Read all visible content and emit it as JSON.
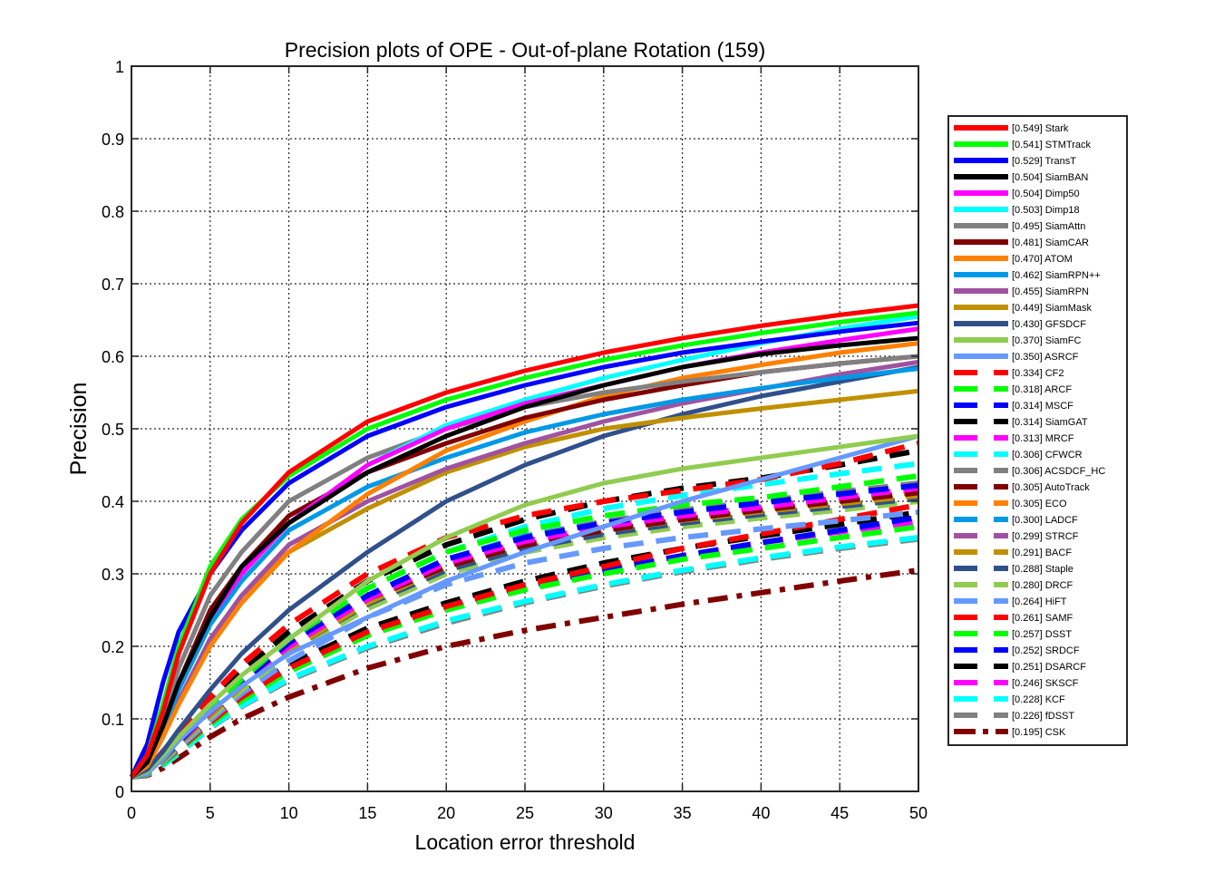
{
  "chart_data": {
    "type": "line",
    "title": "Precision plots of OPE - Out-of-plane Rotation (159)",
    "xlabel": "Location error threshold",
    "ylabel": "Precision",
    "xlim": [
      0,
      50
    ],
    "ylim": [
      0,
      1
    ],
    "xticks": [
      0,
      5,
      10,
      15,
      20,
      25,
      30,
      35,
      40,
      45,
      50
    ],
    "yticks": [
      0,
      0.1,
      0.2,
      0.3,
      0.4,
      0.5,
      0.6,
      0.7,
      0.8,
      0.9,
      1
    ],
    "xtick_labels": [
      "0",
      "5",
      "10",
      "15",
      "20",
      "25",
      "30",
      "35",
      "40",
      "45",
      "50"
    ],
    "ytick_labels": [
      "0",
      "0.1",
      "0.2",
      "0.3",
      "0.4",
      "0.5",
      "0.6",
      "0.7",
      "0.8",
      "0.9",
      "1"
    ],
    "grid": true,
    "legend_position": "right",
    "x": [
      0,
      1,
      2,
      3,
      5,
      7,
      10,
      15,
      20,
      25,
      30,
      35,
      40,
      45,
      50
    ],
    "series": [
      {
        "name": "[0.549] Stark",
        "color": "#FF0000",
        "style": "solid",
        "values": [
          0.02,
          0.05,
          0.11,
          0.19,
          0.3,
          0.37,
          0.44,
          0.51,
          0.55,
          0.58,
          0.605,
          0.625,
          0.642,
          0.657,
          0.67
        ]
      },
      {
        "name": "[0.541] STMTrack",
        "color": "#00FF00",
        "style": "solid",
        "values": [
          0.02,
          0.05,
          0.12,
          0.2,
          0.31,
          0.375,
          0.435,
          0.5,
          0.54,
          0.57,
          0.595,
          0.615,
          0.632,
          0.647,
          0.66
        ]
      },
      {
        "name": "[0.529] TransT",
        "color": "#0000FF",
        "style": "solid",
        "values": [
          0.02,
          0.065,
          0.15,
          0.22,
          0.3,
          0.36,
          0.425,
          0.49,
          0.53,
          0.56,
          0.585,
          0.605,
          0.62,
          0.634,
          0.646
        ]
      },
      {
        "name": "[0.504] SiamBAN",
        "color": "#000000",
        "style": "solid",
        "values": [
          0.02,
          0.04,
          0.09,
          0.15,
          0.24,
          0.31,
          0.37,
          0.44,
          0.49,
          0.53,
          0.56,
          0.585,
          0.603,
          0.615,
          0.625
        ]
      },
      {
        "name": "[0.504] Dimp50",
        "color": "#FF00FF",
        "style": "solid",
        "values": [
          0.02,
          0.04,
          0.09,
          0.15,
          0.24,
          0.3,
          0.37,
          0.45,
          0.5,
          0.535,
          0.56,
          0.585,
          0.605,
          0.622,
          0.638
        ]
      },
      {
        "name": "[0.503] Dimp18",
        "color": "#00FFFF",
        "style": "solid",
        "values": [
          0.02,
          0.04,
          0.09,
          0.15,
          0.24,
          0.3,
          0.37,
          0.45,
          0.505,
          0.54,
          0.57,
          0.595,
          0.618,
          0.638,
          0.655
        ]
      },
      {
        "name": "[0.495] SiamAttn",
        "color": "#808080",
        "style": "solid",
        "values": [
          0.02,
          0.045,
          0.1,
          0.17,
          0.27,
          0.33,
          0.4,
          0.46,
          0.5,
          0.53,
          0.55,
          0.565,
          0.578,
          0.59,
          0.6
        ]
      },
      {
        "name": "[0.481] SiamCAR",
        "color": "#800000",
        "style": "solid",
        "values": [
          0.02,
          0.04,
          0.09,
          0.15,
          0.25,
          0.31,
          0.38,
          0.44,
          0.48,
          0.515,
          0.54,
          0.56,
          0.578,
          0.59,
          0.6
        ]
      },
      {
        "name": "[0.470] ATOM",
        "color": "#FF8000",
        "style": "solid",
        "values": [
          0.02,
          0.035,
          0.075,
          0.12,
          0.2,
          0.26,
          0.33,
          0.41,
          0.47,
          0.51,
          0.545,
          0.57,
          0.588,
          0.605,
          0.618
        ]
      },
      {
        "name": "[0.462] SiamRPN++",
        "color": "#0099E6",
        "style": "solid",
        "values": [
          0.02,
          0.04,
          0.085,
          0.14,
          0.23,
          0.29,
          0.36,
          0.42,
          0.46,
          0.495,
          0.52,
          0.54,
          0.556,
          0.57,
          0.583
        ]
      },
      {
        "name": "[0.455] SiamRPN",
        "color": "#A052A0",
        "style": "solid",
        "values": [
          0.02,
          0.035,
          0.075,
          0.125,
          0.21,
          0.27,
          0.34,
          0.4,
          0.445,
          0.48,
          0.51,
          0.535,
          0.555,
          0.575,
          0.592
        ]
      },
      {
        "name": "[0.449] SiamMask",
        "color": "#C09000",
        "style": "solid",
        "values": [
          0.02,
          0.035,
          0.075,
          0.125,
          0.21,
          0.27,
          0.33,
          0.39,
          0.44,
          0.475,
          0.5,
          0.515,
          0.528,
          0.54,
          0.552
        ]
      },
      {
        "name": "[0.430] GFSDCF",
        "color": "#30508C",
        "style": "solid",
        "values": [
          0.02,
          0.03,
          0.055,
          0.085,
          0.14,
          0.19,
          0.25,
          0.33,
          0.4,
          0.45,
          0.49,
          0.52,
          0.545,
          0.565,
          0.585
        ]
      },
      {
        "name": "[0.370] SiamFC",
        "color": "#90CC50",
        "style": "solid",
        "values": [
          0.02,
          0.028,
          0.05,
          0.075,
          0.12,
          0.16,
          0.21,
          0.29,
          0.35,
          0.395,
          0.425,
          0.445,
          0.46,
          0.475,
          0.49
        ]
      },
      {
        "name": "[0.350] ASRCF",
        "color": "#6699FF",
        "style": "solid",
        "values": [
          0.02,
          0.025,
          0.045,
          0.07,
          0.11,
          0.145,
          0.19,
          0.24,
          0.29,
          0.33,
          0.365,
          0.4,
          0.43,
          0.46,
          0.49
        ]
      },
      {
        "name": "[0.334] CF2",
        "color": "#FF0000",
        "style": "dash",
        "values": [
          0.02,
          0.03,
          0.055,
          0.08,
          0.13,
          0.175,
          0.23,
          0.3,
          0.35,
          0.38,
          0.4,
          0.415,
          0.43,
          0.452,
          0.48
        ]
      },
      {
        "name": "[0.318] ARCF",
        "color": "#00FF00",
        "style": "dash",
        "values": [
          0.02,
          0.025,
          0.045,
          0.07,
          0.115,
          0.155,
          0.21,
          0.28,
          0.33,
          0.36,
          0.38,
          0.395,
          0.405,
          0.42,
          0.435
        ]
      },
      {
        "name": "[0.314] MSCF",
        "color": "#0000FF",
        "style": "dash",
        "values": [
          0.02,
          0.025,
          0.045,
          0.068,
          0.112,
          0.15,
          0.205,
          0.27,
          0.32,
          0.35,
          0.37,
          0.385,
          0.398,
          0.41,
          0.422
        ]
      },
      {
        "name": "[0.314] SiamGAT",
        "color": "#000000",
        "style": "dash",
        "values": [
          0.02,
          0.03,
          0.05,
          0.075,
          0.12,
          0.165,
          0.22,
          0.29,
          0.34,
          0.375,
          0.4,
          0.418,
          0.432,
          0.45,
          0.47
        ]
      },
      {
        "name": "[0.313] MRCF",
        "color": "#FF00FF",
        "style": "dash",
        "values": [
          0.02,
          0.025,
          0.045,
          0.068,
          0.11,
          0.15,
          0.2,
          0.265,
          0.315,
          0.345,
          0.365,
          0.38,
          0.392,
          0.405,
          0.418
        ]
      },
      {
        "name": "[0.306] CFWCR",
        "color": "#00FFFF",
        "style": "dash",
        "values": [
          0.02,
          0.028,
          0.05,
          0.072,
          0.115,
          0.16,
          0.215,
          0.28,
          0.33,
          0.365,
          0.39,
          0.408,
          0.423,
          0.438,
          0.452
        ]
      },
      {
        "name": "[0.306] ACSDCF_HC",
        "color": "#808080",
        "style": "dash",
        "values": [
          0.02,
          0.025,
          0.045,
          0.068,
          0.11,
          0.15,
          0.205,
          0.27,
          0.32,
          0.35,
          0.372,
          0.388,
          0.4,
          0.413,
          0.425
        ]
      },
      {
        "name": "[0.305] AutoTrack",
        "color": "#800000",
        "style": "dash",
        "values": [
          0.02,
          0.025,
          0.045,
          0.068,
          0.11,
          0.15,
          0.2,
          0.265,
          0.31,
          0.34,
          0.36,
          0.375,
          0.388,
          0.4,
          0.412
        ]
      },
      {
        "name": "[0.305] ECO",
        "color": "#FF8000",
        "style": "dash",
        "values": [
          0.02,
          0.025,
          0.045,
          0.068,
          0.11,
          0.15,
          0.2,
          0.265,
          0.315,
          0.345,
          0.365,
          0.378,
          0.39,
          0.402,
          0.413
        ]
      },
      {
        "name": "[0.300] LADCF",
        "color": "#0099E6",
        "style": "dash",
        "values": [
          0.02,
          0.025,
          0.046,
          0.07,
          0.112,
          0.152,
          0.205,
          0.27,
          0.32,
          0.352,
          0.372,
          0.386,
          0.398,
          0.41,
          0.422
        ]
      },
      {
        "name": "[0.299] STRCF",
        "color": "#A052A0",
        "style": "dash",
        "values": [
          0.02,
          0.025,
          0.044,
          0.066,
          0.108,
          0.148,
          0.2,
          0.265,
          0.315,
          0.345,
          0.365,
          0.38,
          0.392,
          0.404,
          0.416
        ]
      },
      {
        "name": "[0.291] BACF",
        "color": "#C09000",
        "style": "dash",
        "values": [
          0.02,
          0.024,
          0.043,
          0.065,
          0.105,
          0.145,
          0.195,
          0.26,
          0.31,
          0.34,
          0.36,
          0.374,
          0.386,
          0.397,
          0.408
        ]
      },
      {
        "name": "[0.288] Staple",
        "color": "#30508C",
        "style": "dash",
        "values": [
          0.02,
          0.024,
          0.043,
          0.065,
          0.105,
          0.145,
          0.195,
          0.258,
          0.305,
          0.335,
          0.355,
          0.37,
          0.382,
          0.393,
          0.404
        ]
      },
      {
        "name": "[0.280] DRCF",
        "color": "#90CC50",
        "style": "dash",
        "values": [
          0.02,
          0.024,
          0.042,
          0.063,
          0.102,
          0.14,
          0.19,
          0.252,
          0.3,
          0.33,
          0.35,
          0.365,
          0.377,
          0.388,
          0.4
        ]
      },
      {
        "name": "[0.264] HiFT",
        "color": "#6699FF",
        "style": "dash",
        "values": [
          0.02,
          0.023,
          0.04,
          0.06,
          0.098,
          0.135,
          0.18,
          0.24,
          0.285,
          0.315,
          0.335,
          0.35,
          0.362,
          0.373,
          0.385
        ]
      },
      {
        "name": "[0.261] SAMF",
        "color": "#FF0000",
        "style": "dash",
        "values": [
          0.02,
          0.025,
          0.04,
          0.058,
          0.095,
          0.13,
          0.17,
          0.22,
          0.255,
          0.285,
          0.31,
          0.335,
          0.355,
          0.375,
          0.395
        ]
      },
      {
        "name": "[0.257] DSST",
        "color": "#00FF00",
        "style": "dash",
        "values": [
          0.02,
          0.024,
          0.038,
          0.056,
          0.092,
          0.125,
          0.165,
          0.215,
          0.25,
          0.278,
          0.3,
          0.32,
          0.335,
          0.35,
          0.365
        ]
      },
      {
        "name": "[0.252] SRDCF",
        "color": "#0000FF",
        "style": "dash",
        "values": [
          0.02,
          0.025,
          0.04,
          0.058,
          0.095,
          0.128,
          0.17,
          0.22,
          0.255,
          0.283,
          0.305,
          0.325,
          0.343,
          0.36,
          0.378
        ]
      },
      {
        "name": "[0.251] DSARCF",
        "color": "#000000",
        "style": "dash",
        "values": [
          0.02,
          0.026,
          0.042,
          0.06,
          0.1,
          0.135,
          0.175,
          0.225,
          0.26,
          0.29,
          0.315,
          0.335,
          0.352,
          0.368,
          0.385
        ]
      },
      {
        "name": "[0.246] SKSCF",
        "color": "#FF00FF",
        "style": "dash",
        "values": [
          0.02,
          0.025,
          0.04,
          0.058,
          0.095,
          0.128,
          0.168,
          0.218,
          0.252,
          0.28,
          0.305,
          0.325,
          0.343,
          0.358,
          0.372
        ]
      },
      {
        "name": "[0.228] KCF",
        "color": "#00FFFF",
        "style": "dash",
        "values": [
          0.02,
          0.023,
          0.036,
          0.052,
          0.088,
          0.118,
          0.155,
          0.2,
          0.235,
          0.262,
          0.285,
          0.305,
          0.322,
          0.337,
          0.35
        ]
      },
      {
        "name": "[0.226] fDSST",
        "color": "#808080",
        "style": "dash",
        "values": [
          0.02,
          0.023,
          0.036,
          0.052,
          0.087,
          0.117,
          0.153,
          0.198,
          0.232,
          0.26,
          0.283,
          0.303,
          0.32,
          0.335,
          0.348
        ]
      },
      {
        "name": "[0.195] CSK",
        "color": "#800000",
        "style": "dashdot",
        "values": [
          0.02,
          0.022,
          0.032,
          0.046,
          0.075,
          0.1,
          0.13,
          0.17,
          0.2,
          0.222,
          0.24,
          0.258,
          0.274,
          0.29,
          0.305
        ]
      }
    ]
  }
}
